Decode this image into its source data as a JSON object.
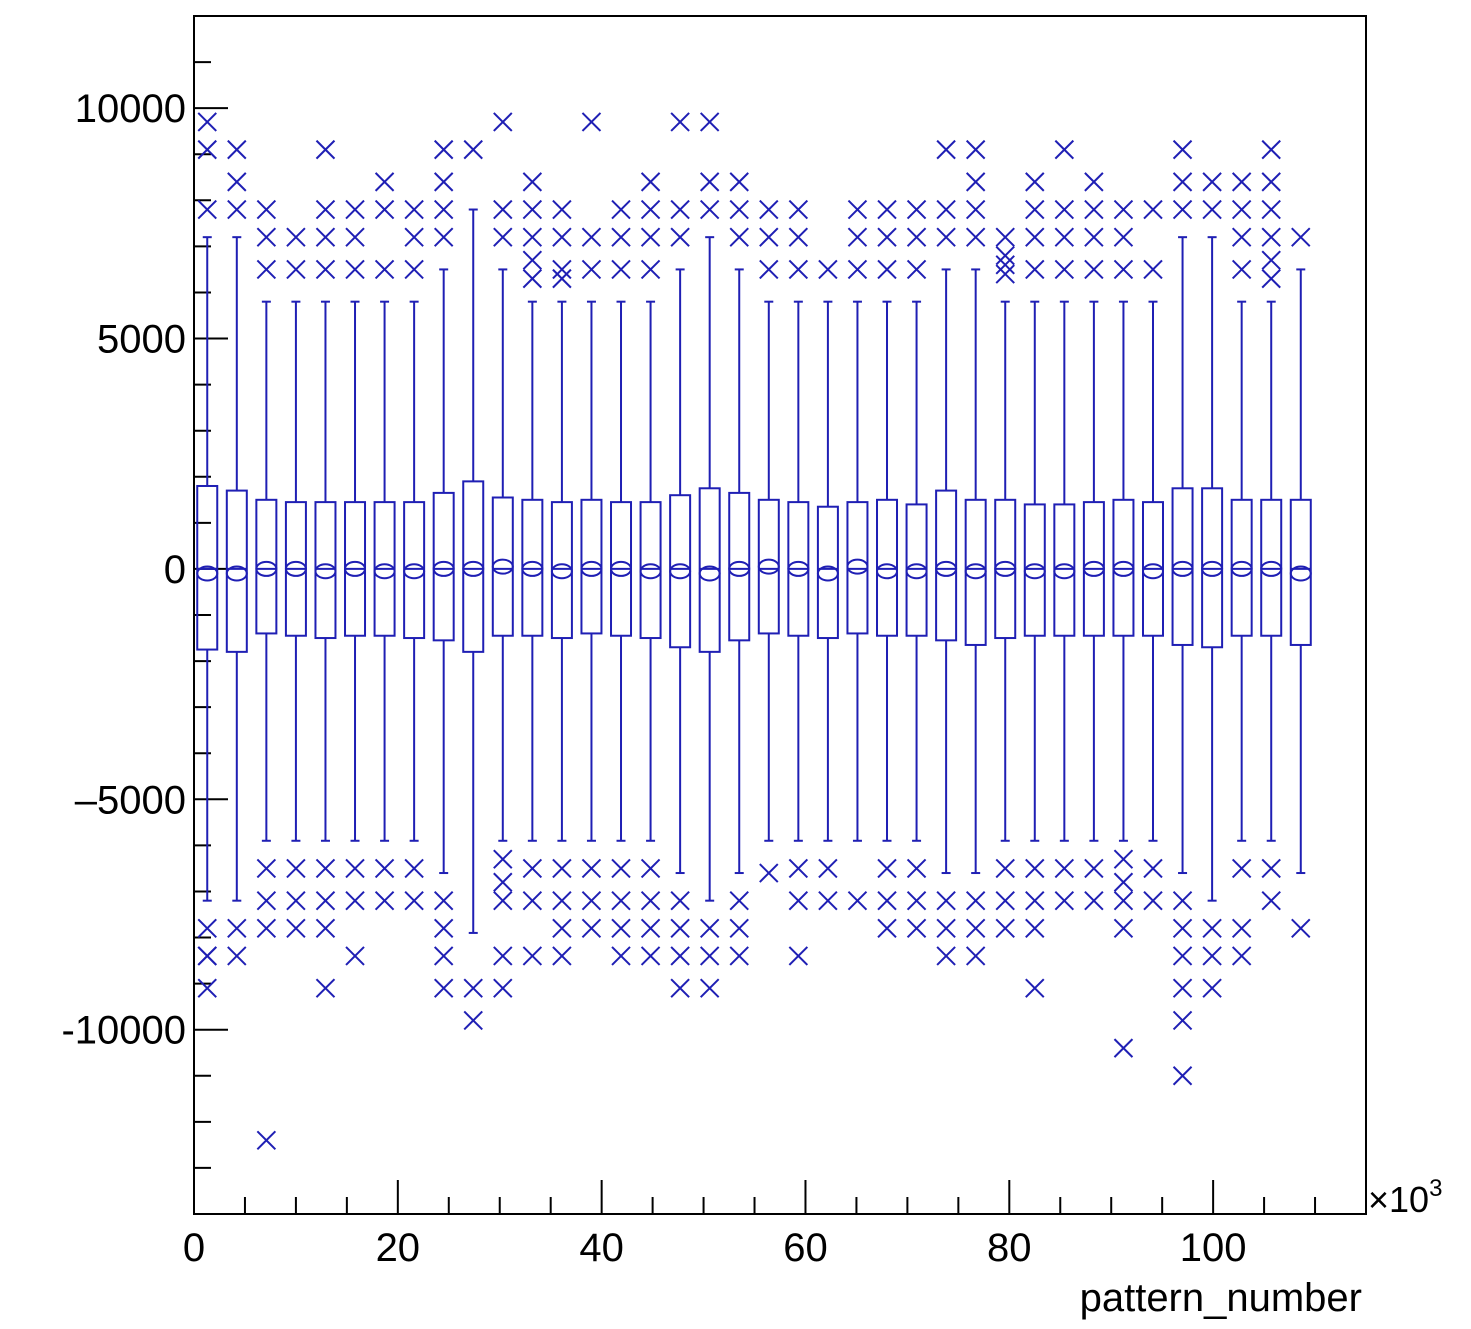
{
  "chart_data": {
    "type": "box",
    "title": "",
    "xlabel": "pattern_number",
    "ylabel": "",
    "x_multiplier_label": "×10",
    "x_multiplier_exp": "3",
    "xlim": [
      0,
      115
    ],
    "ylim": [
      -14000,
      12000
    ],
    "x_ticks": [
      0,
      20,
      40,
      60,
      80,
      100
    ],
    "x_tick_labels": [
      "0",
      "20",
      "40",
      "60",
      "80",
      "100"
    ],
    "y_ticks": [
      -10000,
      -5000,
      0,
      5000,
      10000
    ],
    "y_tick_labels": [
      "-10000",
      "–5000",
      "0",
      "5000",
      "10000"
    ],
    "grid": false,
    "legend": "none",
    "color": "#1f1fb4",
    "boxes": [
      {
        "x": 1.3,
        "q1": -1750,
        "q3": 1800,
        "median": 0,
        "mean": -100,
        "wlo": -7200,
        "whi": 7200,
        "outliers": [
          9700,
          9100,
          7800,
          -7800,
          -8400,
          -9100,
          -8400
        ]
      },
      {
        "x": 4.2,
        "q1": -1800,
        "q3": 1700,
        "median": 0,
        "mean": -100,
        "wlo": -7200,
        "whi": 7200,
        "outliers": [
          9100,
          8400,
          7800,
          -7800,
          -8400
        ]
      },
      {
        "x": 7.1,
        "q1": -1400,
        "q3": 1500,
        "median": 0,
        "mean": 0,
        "wlo": -5900,
        "whi": 5800,
        "outliers": [
          7800,
          7200,
          6500,
          -6500,
          -7200,
          -7800,
          -12400
        ]
      },
      {
        "x": 10.0,
        "q1": -1450,
        "q3": 1450,
        "median": 0,
        "mean": 0,
        "wlo": -5900,
        "whi": 5800,
        "outliers": [
          7200,
          6500,
          -6500,
          -7200,
          -7800
        ]
      },
      {
        "x": 12.9,
        "q1": -1500,
        "q3": 1450,
        "median": 0,
        "mean": -50,
        "wlo": -5900,
        "whi": 5800,
        "outliers": [
          9100,
          7800,
          7200,
          6500,
          -6500,
          -7200,
          -7800,
          -9100
        ]
      },
      {
        "x": 15.8,
        "q1": -1450,
        "q3": 1450,
        "median": 0,
        "mean": 0,
        "wlo": -5900,
        "whi": 5800,
        "outliers": [
          7800,
          7200,
          6500,
          -6500,
          -7200,
          -8400
        ]
      },
      {
        "x": 18.7,
        "q1": -1450,
        "q3": 1450,
        "median": 0,
        "mean": -50,
        "wlo": -5900,
        "whi": 5800,
        "outliers": [
          8400,
          7800,
          6500,
          -6500,
          -7200
        ]
      },
      {
        "x": 21.6,
        "q1": -1500,
        "q3": 1450,
        "median": 0,
        "mean": -50,
        "wlo": -5900,
        "whi": 5800,
        "outliers": [
          7800,
          7200,
          6500,
          -6500,
          -7200
        ]
      },
      {
        "x": 24.5,
        "q1": -1550,
        "q3": 1650,
        "median": 0,
        "mean": 0,
        "wlo": -6600,
        "whi": 6500,
        "outliers": [
          9100,
          8400,
          7800,
          7200,
          -7200,
          -7800,
          -8400,
          -9100
        ]
      },
      {
        "x": 27.4,
        "q1": -1800,
        "q3": 1900,
        "median": 0,
        "mean": 0,
        "wlo": -7900,
        "whi": 7800,
        "outliers": [
          9100,
          -9100,
          -9800
        ]
      },
      {
        "x": 30.3,
        "q1": -1450,
        "q3": 1550,
        "median": 0,
        "mean": 50,
        "wlo": -5900,
        "whi": 6500,
        "outliers": [
          9700,
          7800,
          7200,
          -6300,
          -6800,
          -7200,
          -8400,
          -9100
        ]
      },
      {
        "x": 33.2,
        "q1": -1450,
        "q3": 1500,
        "median": 0,
        "mean": 0,
        "wlo": -5900,
        "whi": 5800,
        "outliers": [
          8400,
          7800,
          7200,
          6700,
          6300,
          -6500,
          -7200,
          -8400
        ]
      },
      {
        "x": 36.1,
        "q1": -1500,
        "q3": 1450,
        "median": 0,
        "mean": -50,
        "wlo": -5900,
        "whi": 5800,
        "outliers": [
          7800,
          7200,
          6500,
          6300,
          -6500,
          -7200,
          -7800,
          -8400
        ]
      },
      {
        "x": 39.0,
        "q1": -1400,
        "q3": 1500,
        "median": 0,
        "mean": 0,
        "wlo": -5900,
        "whi": 5800,
        "outliers": [
          9700,
          7200,
          6500,
          -6500,
          -7200,
          -7800
        ]
      },
      {
        "x": 41.9,
        "q1": -1450,
        "q3": 1450,
        "median": 0,
        "mean": 0,
        "wlo": -5900,
        "whi": 5800,
        "outliers": [
          7800,
          7200,
          6500,
          -6500,
          -7200,
          -7800,
          -8400
        ]
      },
      {
        "x": 44.8,
        "q1": -1500,
        "q3": 1450,
        "median": 0,
        "mean": -50,
        "wlo": -5900,
        "whi": 5800,
        "outliers": [
          8400,
          7800,
          7200,
          6500,
          -6500,
          -7200,
          -7800,
          -8400
        ]
      },
      {
        "x": 47.7,
        "q1": -1700,
        "q3": 1600,
        "median": 0,
        "mean": -50,
        "wlo": -6600,
        "whi": 6500,
        "outliers": [
          9700,
          7800,
          7200,
          -7200,
          -7800,
          -8400,
          -9100
        ]
      },
      {
        "x": 50.6,
        "q1": -1800,
        "q3": 1750,
        "median": 0,
        "mean": -100,
        "wlo": -7200,
        "whi": 7200,
        "outliers": [
          9700,
          8400,
          7800,
          -7800,
          -8400,
          -9100
        ]
      },
      {
        "x": 53.5,
        "q1": -1550,
        "q3": 1650,
        "median": 0,
        "mean": 0,
        "wlo": -6600,
        "whi": 6500,
        "outliers": [
          8400,
          7800,
          7200,
          -7200,
          -7800,
          -8400
        ]
      },
      {
        "x": 56.4,
        "q1": -1400,
        "q3": 1500,
        "median": 0,
        "mean": 50,
        "wlo": -5900,
        "whi": 5800,
        "outliers": [
          7800,
          7200,
          6500,
          -6600
        ]
      },
      {
        "x": 59.3,
        "q1": -1450,
        "q3": 1450,
        "median": 0,
        "mean": 0,
        "wlo": -5900,
        "whi": 5800,
        "outliers": [
          7800,
          7200,
          6500,
          -6500,
          -7200,
          -8400
        ]
      },
      {
        "x": 62.2,
        "q1": -1500,
        "q3": 1350,
        "median": 0,
        "mean": -100,
        "wlo": -5900,
        "whi": 5800,
        "outliers": [
          6500,
          -6500,
          -7200
        ]
      },
      {
        "x": 65.1,
        "q1": -1400,
        "q3": 1450,
        "median": 0,
        "mean": 50,
        "wlo": -5900,
        "whi": 5800,
        "outliers": [
          7800,
          7200,
          6500,
          -7200
        ]
      },
      {
        "x": 68.0,
        "q1": -1450,
        "q3": 1500,
        "median": 0,
        "mean": -50,
        "wlo": -5900,
        "whi": 5800,
        "outliers": [
          7800,
          7200,
          6500,
          -6500,
          -7200,
          -7800
        ]
      },
      {
        "x": 70.9,
        "q1": -1450,
        "q3": 1400,
        "median": 0,
        "mean": -50,
        "wlo": -5900,
        "whi": 5800,
        "outliers": [
          7800,
          7200,
          6500,
          -6500,
          -7200,
          -7800
        ]
      },
      {
        "x": 73.8,
        "q1": -1550,
        "q3": 1700,
        "median": 0,
        "mean": 0,
        "wlo": -6600,
        "whi": 6500,
        "outliers": [
          9100,
          7800,
          7200,
          -7200,
          -7800,
          -8400
        ]
      },
      {
        "x": 76.7,
        "q1": -1650,
        "q3": 1500,
        "median": 0,
        "mean": -50,
        "wlo": -6600,
        "whi": 6500,
        "outliers": [
          9100,
          8400,
          7800,
          7200,
          -7200,
          -7800,
          -8400
        ]
      },
      {
        "x": 79.6,
        "q1": -1500,
        "q3": 1500,
        "median": 0,
        "mean": 0,
        "wlo": -5900,
        "whi": 5800,
        "outliers": [
          7200,
          6800,
          6600,
          6400,
          -6500,
          -7200,
          -7800
        ]
      },
      {
        "x": 82.5,
        "q1": -1450,
        "q3": 1400,
        "median": 0,
        "mean": -50,
        "wlo": -5900,
        "whi": 5800,
        "outliers": [
          8400,
          7800,
          7200,
          6500,
          -6500,
          -7200,
          -7800,
          -9100
        ]
      },
      {
        "x": 85.4,
        "q1": -1450,
        "q3": 1400,
        "median": 0,
        "mean": -50,
        "wlo": -5900,
        "whi": 5800,
        "outliers": [
          9100,
          7800,
          7200,
          6500,
          -6500,
          -7200
        ]
      },
      {
        "x": 88.3,
        "q1": -1450,
        "q3": 1450,
        "median": 0,
        "mean": 0,
        "wlo": -5900,
        "whi": 5800,
        "outliers": [
          8400,
          7800,
          7200,
          6500,
          -6500,
          -7200
        ]
      },
      {
        "x": 91.2,
        "q1": -1450,
        "q3": 1500,
        "median": 0,
        "mean": 0,
        "wlo": -5900,
        "whi": 5800,
        "outliers": [
          7800,
          7200,
          6500,
          -6300,
          -6800,
          -7200,
          -7800,
          -10400
        ]
      },
      {
        "x": 94.1,
        "q1": -1450,
        "q3": 1450,
        "median": 0,
        "mean": -50,
        "wlo": -5900,
        "whi": 5800,
        "outliers": [
          7800,
          6500,
          -6500,
          -7200
        ]
      },
      {
        "x": 97.0,
        "q1": -1650,
        "q3": 1750,
        "median": 0,
        "mean": 0,
        "wlo": -6600,
        "whi": 7200,
        "outliers": [
          9100,
          8400,
          7800,
          -7200,
          -7800,
          -8400,
          -9100,
          -9800,
          -11000
        ]
      },
      {
        "x": 99.9,
        "q1": -1700,
        "q3": 1750,
        "median": 0,
        "mean": 0,
        "wlo": -7200,
        "whi": 7200,
        "outliers": [
          8400,
          7800,
          -7800,
          -8400,
          -9100
        ]
      },
      {
        "x": 102.8,
        "q1": -1450,
        "q3": 1500,
        "median": 0,
        "mean": 0,
        "wlo": -5900,
        "whi": 5800,
        "outliers": [
          8400,
          7800,
          7200,
          6500,
          -6500,
          -7800,
          -8400
        ]
      },
      {
        "x": 105.7,
        "q1": -1450,
        "q3": 1500,
        "median": 0,
        "mean": 0,
        "wlo": -5900,
        "whi": 5800,
        "outliers": [
          9100,
          8400,
          7800,
          7200,
          6700,
          6300,
          -6500,
          -7200
        ]
      },
      {
        "x": 108.6,
        "q1": -1650,
        "q3": 1500,
        "median": 0,
        "mean": -100,
        "wlo": -6600,
        "whi": 6500,
        "outliers": [
          7200,
          -7800
        ]
      }
    ]
  }
}
